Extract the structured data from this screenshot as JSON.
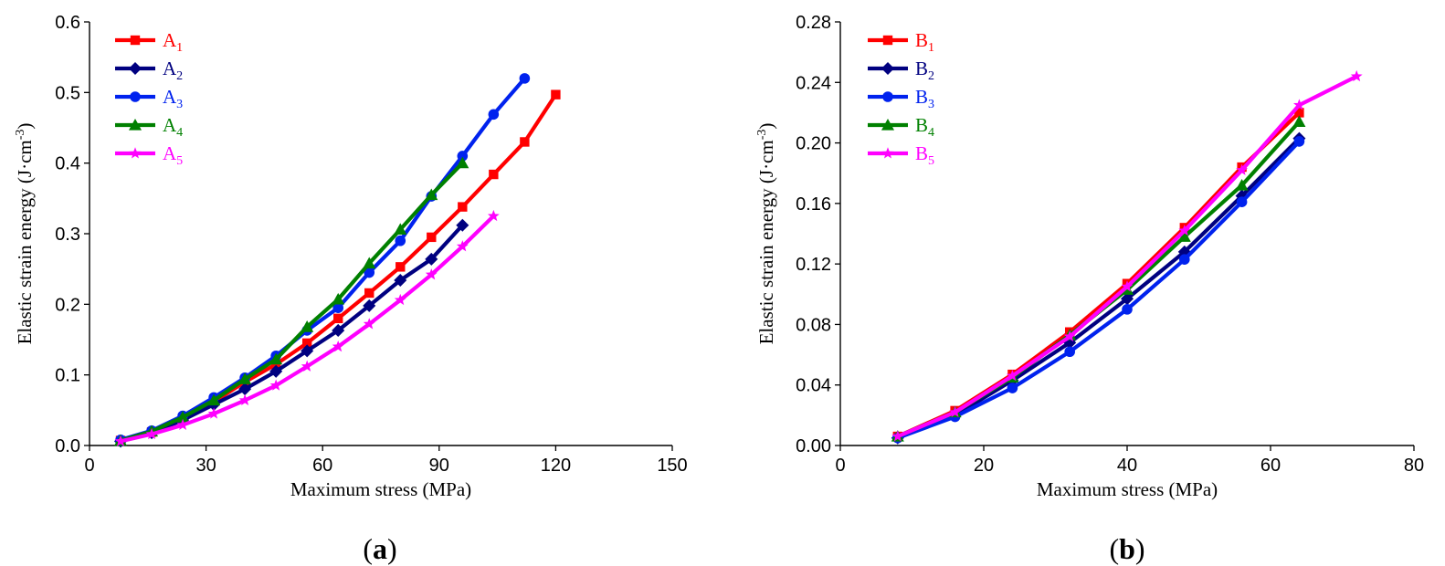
{
  "chart_data": [
    {
      "type": "line",
      "panel_label": "a",
      "xlabel": "Maximum stress (MPa)",
      "ylabel": "Elastic strain energy (J·cm",
      "ylabel_sup": "-3",
      "ylabel_close": ")",
      "xlim": [
        0,
        150
      ],
      "ylim": [
        0,
        0.6
      ],
      "xticks": [
        0,
        30,
        60,
        90,
        120,
        150
      ],
      "xtick_labels": [
        "0",
        "30",
        "60",
        "90",
        "120",
        "150"
      ],
      "yticks": [
        0,
        0.1,
        0.2,
        0.3,
        0.4,
        0.5,
        0.6
      ],
      "ytick_labels": [
        "0.0",
        "0.1",
        "0.2",
        "0.3",
        "0.4",
        "0.5",
        "0.6"
      ],
      "legend_position": "top-left",
      "series": [
        {
          "name": "A",
          "sub": "1",
          "color": "#ff0000",
          "marker": "square",
          "x": [
            8,
            16,
            24,
            32,
            40,
            48,
            56,
            64,
            72,
            80,
            88,
            96,
            104,
            112,
            120
          ],
          "y": [
            0.007,
            0.019,
            0.037,
            0.062,
            0.09,
            0.115,
            0.145,
            0.18,
            0.216,
            0.253,
            0.295,
            0.338,
            0.384,
            0.43,
            0.497
          ]
        },
        {
          "name": "A",
          "sub": "2",
          "color": "#000080",
          "marker": "diamond",
          "x": [
            8,
            16,
            24,
            32,
            40,
            48,
            56,
            64,
            72,
            80,
            88,
            96
          ],
          "y": [
            0.006,
            0.018,
            0.036,
            0.058,
            0.08,
            0.105,
            0.134,
            0.163,
            0.198,
            0.234,
            0.264,
            0.312
          ]
        },
        {
          "name": "A",
          "sub": "3",
          "color": "#0022ee",
          "marker": "circle",
          "x": [
            8,
            16,
            24,
            32,
            40,
            48,
            56,
            64,
            72,
            80,
            88,
            96,
            104,
            112
          ],
          "y": [
            0.008,
            0.021,
            0.042,
            0.068,
            0.096,
            0.127,
            0.163,
            0.195,
            0.245,
            0.29,
            0.353,
            0.41,
            0.469,
            0.52
          ]
        },
        {
          "name": "A",
          "sub": "4",
          "color": "#008000",
          "marker": "triangle",
          "x": [
            8,
            16,
            24,
            32,
            40,
            48,
            56,
            64,
            72,
            80,
            88,
            96
          ],
          "y": [
            0.007,
            0.02,
            0.04,
            0.064,
            0.094,
            0.122,
            0.168,
            0.207,
            0.258,
            0.306,
            0.355,
            0.4
          ]
        },
        {
          "name": "A",
          "sub": "5",
          "color": "#ff00ff",
          "marker": "star",
          "x": [
            8,
            16,
            24,
            32,
            40,
            48,
            56,
            64,
            72,
            80,
            88,
            96,
            104
          ],
          "y": [
            0.006,
            0.016,
            0.029,
            0.045,
            0.064,
            0.085,
            0.112,
            0.14,
            0.172,
            0.206,
            0.242,
            0.282,
            0.325
          ]
        }
      ]
    },
    {
      "type": "line",
      "panel_label": "b",
      "xlabel": "Maximum stress (MPa)",
      "ylabel": "Elastic strain energy (J·cm",
      "ylabel_sup": "-3",
      "ylabel_close": ")",
      "xlim": [
        0,
        80
      ],
      "ylim": [
        0,
        0.28
      ],
      "xticks": [
        0,
        20,
        40,
        60,
        80
      ],
      "xtick_labels": [
        "0",
        "20",
        "40",
        "60",
        "80"
      ],
      "yticks": [
        0,
        0.04,
        0.08,
        0.12,
        0.16,
        0.2,
        0.24,
        0.28
      ],
      "ytick_labels": [
        "0.00",
        "0.04",
        "0.08",
        "0.12",
        "0.16",
        "0.20",
        "0.24",
        "0.28"
      ],
      "legend_position": "top-left",
      "series": [
        {
          "name": "B",
          "sub": "1",
          "color": "#ff0000",
          "marker": "square",
          "x": [
            8,
            16,
            24,
            32,
            40,
            48,
            56,
            64
          ],
          "y": [
            0.006,
            0.023,
            0.047,
            0.075,
            0.107,
            0.144,
            0.184,
            0.22
          ]
        },
        {
          "name": "B",
          "sub": "2",
          "color": "#000080",
          "marker": "diamond",
          "x": [
            8,
            16,
            24,
            32,
            40,
            48,
            56,
            64
          ],
          "y": [
            0.005,
            0.02,
            0.043,
            0.068,
            0.097,
            0.128,
            0.165,
            0.203
          ]
        },
        {
          "name": "B",
          "sub": "3",
          "color": "#0022ee",
          "marker": "circle",
          "x": [
            8,
            16,
            24,
            32,
            40,
            48,
            56,
            64
          ],
          "y": [
            0.005,
            0.019,
            0.038,
            0.062,
            0.09,
            0.123,
            0.161,
            0.201
          ]
        },
        {
          "name": "B",
          "sub": "4",
          "color": "#008000",
          "marker": "triangle",
          "x": [
            8,
            16,
            24,
            32,
            40,
            48,
            56,
            64
          ],
          "y": [
            0.006,
            0.022,
            0.045,
            0.073,
            0.103,
            0.138,
            0.172,
            0.214
          ]
        },
        {
          "name": "B",
          "sub": "5",
          "color": "#ff00ff",
          "marker": "star",
          "x": [
            8,
            16,
            24,
            32,
            40,
            48,
            56,
            64,
            72
          ],
          "y": [
            0.006,
            0.022,
            0.046,
            0.072,
            0.105,
            0.142,
            0.182,
            0.225,
            0.244
          ]
        }
      ]
    }
  ]
}
